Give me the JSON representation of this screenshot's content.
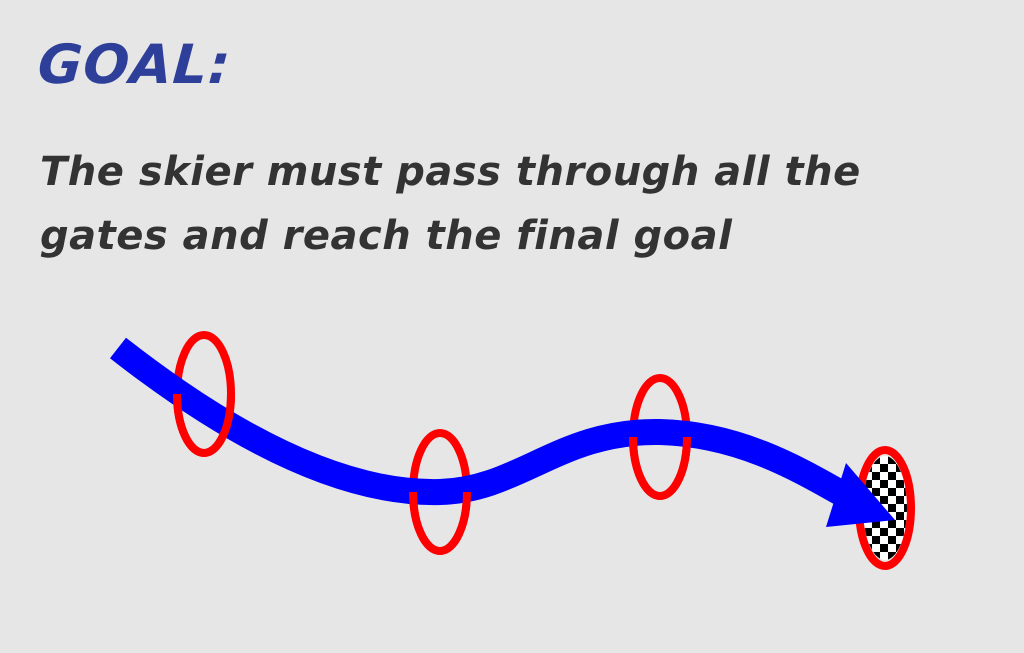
{
  "heading": "GOAL:",
  "description": "The skier must pass through all the gates and reach the final goal",
  "colors": {
    "background": "#e6e6e6",
    "heading": "#2e3f99",
    "text": "#333333",
    "gate": "#ff0000",
    "path": "#0000ff",
    "finish_dark": "#000000",
    "finish_light": "#ffffff"
  },
  "diagram": {
    "gate_count": 3,
    "has_finish_flag": true,
    "path_icon": "arrow-icon",
    "finish_icon": "checkered-flag-icon"
  }
}
